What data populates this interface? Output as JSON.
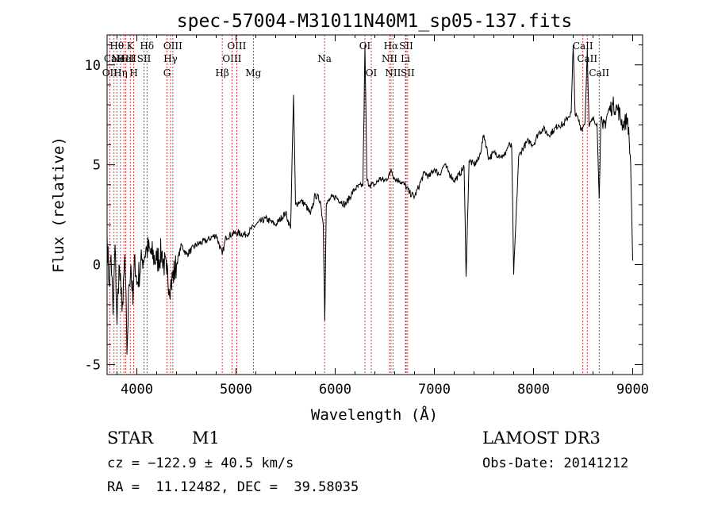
{
  "chart_data": {
    "type": "line",
    "title": "spec-57004-M31011N40M1_sp05-137.fits",
    "xlabel": "Wavelength (Å)",
    "ylabel": "Flux (relative)",
    "xlim": [
      3700,
      9100
    ],
    "ylim": [
      -5.5,
      11.5
    ],
    "xticks": [
      4000,
      5000,
      6000,
      7000,
      8000,
      9000
    ],
    "yticks": [
      -5,
      0,
      5,
      10
    ],
    "grid": false,
    "series": [
      {
        "name": "spectrum",
        "x": [
          3700,
          3720,
          3740,
          3760,
          3780,
          3800,
          3820,
          3840,
          3860,
          3880,
          3900,
          3920,
          3940,
          3960,
          3980,
          4000,
          4050,
          4100,
          4150,
          4200,
          4250,
          4300,
          4340,
          4400,
          4450,
          4500,
          4600,
          4700,
          4800,
          4861,
          4900,
          5000,
          5100,
          5200,
          5300,
          5400,
          5500,
          5550,
          5580,
          5600,
          5650,
          5700,
          5750,
          5800,
          5850,
          5880,
          5895,
          5910,
          5950,
          6000,
          6100,
          6200,
          6280,
          6300,
          6320,
          6350,
          6400,
          6450,
          6500,
          6550,
          6563,
          6600,
          6650,
          6700,
          6750,
          6800,
          6850,
          6900,
          6950,
          7000,
          7050,
          7100,
          7150,
          7200,
          7250,
          7300,
          7320,
          7350,
          7400,
          7450,
          7500,
          7550,
          7600,
          7650,
          7700,
          7750,
          7780,
          7800,
          7850,
          7900,
          7950,
          8000,
          8050,
          8100,
          8150,
          8200,
          8250,
          8300,
          8350,
          8380,
          8400,
          8420,
          8450,
          8480,
          8500,
          8520,
          8542,
          8560,
          8600,
          8640,
          8662,
          8680,
          8700,
          8750,
          8800,
          8850,
          8900,
          8950,
          8980,
          9000
        ],
        "values": [
          1.5,
          -1.0,
          0.5,
          -2.5,
          1.0,
          -3.0,
          0.0,
          -1.5,
          -2.0,
          0.5,
          -4.5,
          -1.0,
          0.0,
          -2.0,
          0.5,
          -1.0,
          0.2,
          0.8,
          0.5,
          0.2,
          0.6,
          -0.5,
          -1.0,
          0.0,
          1.0,
          0.5,
          1.0,
          1.2,
          1.5,
          0.5,
          1.4,
          1.6,
          1.5,
          2.0,
          2.3,
          2.0,
          2.6,
          1.8,
          8.5,
          3.0,
          3.2,
          3.0,
          2.5,
          3.5,
          3.2,
          2.0,
          -2.8,
          3.0,
          3.3,
          3.4,
          3.0,
          3.8,
          4.0,
          11.0,
          4.2,
          4.0,
          4.0,
          4.3,
          4.2,
          4.5,
          4.8,
          4.3,
          4.2,
          4.0,
          3.6,
          3.4,
          4.0,
          4.6,
          4.4,
          4.8,
          4.5,
          5.0,
          4.6,
          4.2,
          4.5,
          4.9,
          -0.6,
          5.2,
          5.0,
          5.3,
          6.5,
          5.3,
          5.6,
          5.5,
          5.4,
          6.0,
          5.9,
          -0.5,
          5.4,
          5.9,
          6.2,
          6.0,
          6.6,
          6.8,
          6.5,
          6.7,
          7.0,
          7.0,
          7.4,
          7.6,
          11.0,
          7.5,
          7.3,
          6.8,
          6.9,
          7.2,
          10.8,
          6.9,
          7.3,
          7.1,
          3.3,
          7.4,
          6.8,
          7.6,
          8.0,
          7.8,
          7.0,
          7.3,
          5.0,
          0.2
        ]
      }
    ],
    "lines": [
      {
        "label": "OII",
        "wl": 3727,
        "row": 3
      },
      {
        "label": "Hθ",
        "wl": 3798,
        "row": 1
      },
      {
        "label": "CaII",
        "wl": 3770,
        "row": 2
      },
      {
        "label": "Hη",
        "wl": 3835,
        "row": 3
      },
      {
        "label": "NeIII",
        "wl": 3869,
        "row": 2
      },
      {
        "label": "K",
        "wl": 3934,
        "row": 1
      },
      {
        "label": "H",
        "wl": 3969,
        "row": 3
      },
      {
        "label": "HeI",
        "wl": 3889,
        "row": 2
      },
      {
        "label": "SII",
        "wl": 4072,
        "row": 2
      },
      {
        "label": "Hδ",
        "wl": 4102,
        "row": 1
      },
      {
        "label": "G",
        "wl": 4304,
        "row": 3
      },
      {
        "label": "Hγ",
        "wl": 4340,
        "row": 2
      },
      {
        "label": "OIII",
        "wl": 4363,
        "row": 1
      },
      {
        "label": "Hβ",
        "wl": 4861,
        "row": 3
      },
      {
        "label": "OIII",
        "wl": 4959,
        "row": 2
      },
      {
        "label": "OIII",
        "wl": 5007,
        "row": 1
      },
      {
        "label": "Mg",
        "wl": 5175,
        "row": 3
      },
      {
        "label": "Na",
        "wl": 5893,
        "row": 2
      },
      {
        "label": "OI",
        "wl": 6300,
        "row": 1
      },
      {
        "label": "OI",
        "wl": 6364,
        "row": 3
      },
      {
        "label": "NII",
        "wl": 6548,
        "row": 2
      },
      {
        "label": "Hα",
        "wl": 6563,
        "row": 1
      },
      {
        "label": "NII",
        "wl": 6583,
        "row": 3
      },
      {
        "label": "Li",
        "wl": 6708,
        "row": 2
      },
      {
        "label": "SII",
        "wl": 6716,
        "row": 1
      },
      {
        "label": "SII",
        "wl": 6731,
        "row": 3
      },
      {
        "label": "CaII",
        "wl": 8498,
        "row": 1
      },
      {
        "label": "CaII",
        "wl": 8542,
        "row": 2
      },
      {
        "label": "CaII",
        "wl": 8662,
        "row": 3
      }
    ]
  },
  "info": {
    "class": "STAR",
    "subclass": "M1",
    "survey": "LAMOST DR3",
    "cz": "cz = −122.9 ± 40.5 km/s",
    "obs_date": "Obs-Date: 20141212",
    "radec": "RA =  11.12482, DEC =  39.58035"
  }
}
